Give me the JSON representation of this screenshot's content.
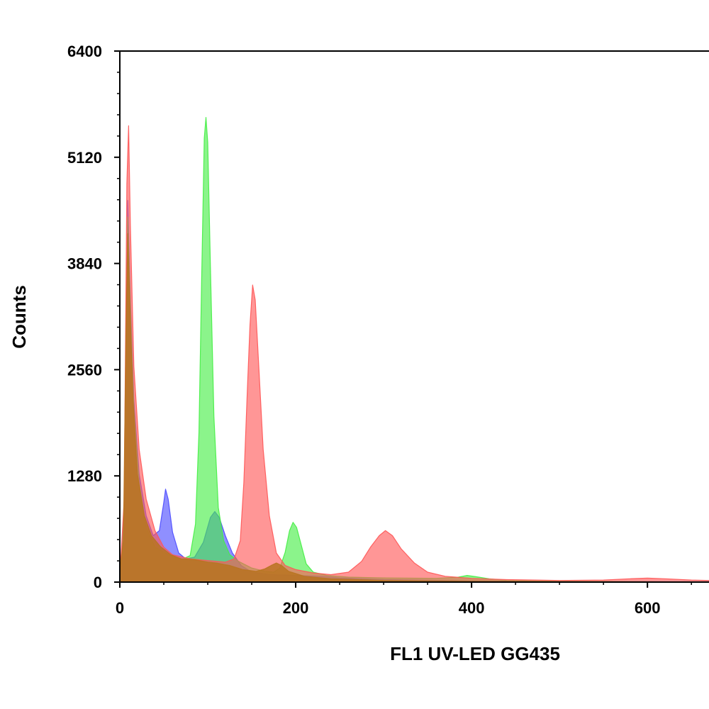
{
  "chart_data": {
    "type": "area",
    "title": "",
    "xlabel": "FL1  UV-LED GG435",
    "ylabel": "Counts",
    "xlim": [
      0,
      670
    ],
    "ylim": [
      0,
      6400
    ],
    "x_ticks": [
      "0",
      "200",
      "400",
      "600"
    ],
    "x_tick_values": [
      0,
      200,
      400,
      600
    ],
    "y_ticks": [
      "0",
      "1280",
      "2560",
      "3840",
      "5120",
      "6400"
    ],
    "y_tick_values": [
      0,
      1280,
      2560,
      3840,
      5120,
      6400
    ],
    "grid": false,
    "legend": "none",
    "series": [
      {
        "color": "#4a4aff",
        "points": [
          [
            0,
            60
          ],
          [
            5,
            900
          ],
          [
            9,
            4600
          ],
          [
            12,
            3400
          ],
          [
            16,
            2200
          ],
          [
            22,
            1300
          ],
          [
            30,
            800
          ],
          [
            38,
            560
          ],
          [
            45,
            620
          ],
          [
            50,
            960
          ],
          [
            52,
            1120
          ],
          [
            55,
            1000
          ],
          [
            60,
            600
          ],
          [
            67,
            350
          ],
          [
            75,
            280
          ],
          [
            85,
            300
          ],
          [
            95,
            480
          ],
          [
            103,
            780
          ],
          [
            108,
            850
          ],
          [
            113,
            780
          ],
          [
            120,
            560
          ],
          [
            128,
            350
          ],
          [
            138,
            200
          ],
          [
            150,
            120
          ],
          [
            170,
            90
          ],
          [
            200,
            80
          ],
          [
            230,
            70
          ],
          [
            250,
            50
          ],
          [
            300,
            30
          ],
          [
            400,
            15
          ],
          [
            500,
            8
          ],
          [
            600,
            4
          ],
          [
            670,
            2
          ]
        ]
      },
      {
        "color": "#44ee44",
        "points": [
          [
            0,
            50
          ],
          [
            5,
            800
          ],
          [
            9,
            4400
          ],
          [
            12,
            3300
          ],
          [
            16,
            2100
          ],
          [
            22,
            1200
          ],
          [
            30,
            650
          ],
          [
            40,
            420
          ],
          [
            55,
            330
          ],
          [
            70,
            270
          ],
          [
            80,
            320
          ],
          [
            86,
            700
          ],
          [
            90,
            1800
          ],
          [
            93,
            3600
          ],
          [
            96,
            5350
          ],
          [
            98,
            5600
          ],
          [
            100,
            5300
          ],
          [
            103,
            3800
          ],
          [
            107,
            2000
          ],
          [
            112,
            900
          ],
          [
            118,
            500
          ],
          [
            125,
            330
          ],
          [
            135,
            250
          ],
          [
            150,
            170
          ],
          [
            165,
            130
          ],
          [
            175,
            120
          ],
          [
            182,
            170
          ],
          [
            188,
            360
          ],
          [
            193,
            620
          ],
          [
            197,
            720
          ],
          [
            201,
            660
          ],
          [
            206,
            460
          ],
          [
            212,
            220
          ],
          [
            220,
            120
          ],
          [
            235,
            80
          ],
          [
            260,
            60
          ],
          [
            300,
            50
          ],
          [
            360,
            45
          ],
          [
            385,
            60
          ],
          [
            395,
            80
          ],
          [
            405,
            65
          ],
          [
            420,
            40
          ],
          [
            440,
            20
          ],
          [
            500,
            10
          ],
          [
            600,
            4
          ],
          [
            670,
            2
          ]
        ]
      },
      {
        "color": "#ff5555",
        "points": [
          [
            0,
            60
          ],
          [
            5,
            1000
          ],
          [
            8,
            4800
          ],
          [
            10,
            5500
          ],
          [
            12,
            4300
          ],
          [
            16,
            2600
          ],
          [
            22,
            1600
          ],
          [
            30,
            1000
          ],
          [
            40,
            620
          ],
          [
            50,
            420
          ],
          [
            60,
            330
          ],
          [
            80,
            280
          ],
          [
            100,
            260
          ],
          [
            120,
            240
          ],
          [
            130,
            280
          ],
          [
            137,
            500
          ],
          [
            141,
            1200
          ],
          [
            145,
            2300
          ],
          [
            148,
            3100
          ],
          [
            151,
            3580
          ],
          [
            154,
            3400
          ],
          [
            158,
            2600
          ],
          [
            163,
            1600
          ],
          [
            170,
            800
          ],
          [
            178,
            350
          ],
          [
            188,
            200
          ],
          [
            200,
            150
          ],
          [
            220,
            110
          ],
          [
            240,
            90
          ],
          [
            260,
            120
          ],
          [
            275,
            250
          ],
          [
            285,
            420
          ],
          [
            295,
            560
          ],
          [
            302,
            620
          ],
          [
            310,
            560
          ],
          [
            320,
            400
          ],
          [
            335,
            230
          ],
          [
            350,
            120
          ],
          [
            370,
            70
          ],
          [
            400,
            45
          ],
          [
            440,
            30
          ],
          [
            500,
            20
          ],
          [
            550,
            25
          ],
          [
            580,
            40
          ],
          [
            600,
            48
          ],
          [
            620,
            40
          ],
          [
            650,
            25
          ],
          [
            670,
            20
          ]
        ]
      },
      {
        "color": "#b87320",
        "points": [
          [
            0,
            150
          ],
          [
            4,
            500
          ],
          [
            7,
            3000
          ],
          [
            9,
            4200
          ],
          [
            11,
            3500
          ],
          [
            15,
            2200
          ],
          [
            20,
            1300
          ],
          [
            28,
            800
          ],
          [
            36,
            560
          ],
          [
            46,
            430
          ],
          [
            58,
            330
          ],
          [
            70,
            280
          ],
          [
            85,
            270
          ],
          [
            100,
            240
          ],
          [
            110,
            230
          ],
          [
            125,
            200
          ],
          [
            140,
            150
          ],
          [
            155,
            130
          ],
          [
            165,
            160
          ],
          [
            172,
            200
          ],
          [
            178,
            230
          ],
          [
            184,
            200
          ],
          [
            192,
            130
          ],
          [
            210,
            70
          ],
          [
            240,
            40
          ],
          [
            300,
            20
          ],
          [
            400,
            10
          ],
          [
            500,
            6
          ],
          [
            600,
            3
          ],
          [
            670,
            2
          ]
        ]
      }
    ]
  }
}
